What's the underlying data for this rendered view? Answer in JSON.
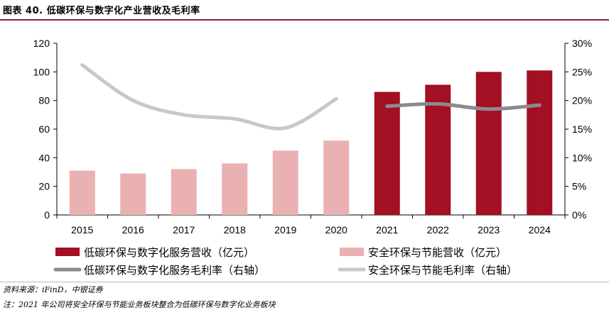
{
  "figure": {
    "title": "图表 40. 低碳环保与数字化产业营收及毛利率",
    "source": "资料来源：iFinD，中银证券",
    "note": "注：2021 年公司将安全环保与节能业务板块整合为低碳环保与数字化业务板块"
  },
  "colors": {
    "lowcarbon_revenue": "#a30f23",
    "safety_revenue": "#e9b1b2",
    "lowcarbon_margin": "#8a8a8f",
    "safety_margin": "#c8c8c8",
    "title_rule": "#8c1c2a"
  },
  "chart_data": {
    "type": "bar",
    "categories": [
      "2015",
      "2016",
      "2017",
      "2018",
      "2019",
      "2020",
      "2021",
      "2022",
      "2023",
      "2024"
    ],
    "series": [
      {
        "name": "低碳环保与数字化服务营收（亿元）",
        "kind": "bar",
        "axis": "left",
        "values": [
          null,
          null,
          null,
          null,
          null,
          null,
          86,
          91,
          100,
          101
        ]
      },
      {
        "name": "安全环保与节能营收（亿元）",
        "kind": "bar",
        "axis": "left",
        "values": [
          31,
          29,
          32,
          36,
          45,
          52,
          null,
          null,
          null,
          null
        ]
      },
      {
        "name": "低碳环保与数字化服务毛利率（右轴）",
        "kind": "line",
        "axis": "right",
        "values": [
          null,
          null,
          null,
          null,
          null,
          null,
          19.0,
          19.4,
          18.5,
          19.2
        ]
      },
      {
        "name": "安全环保与节能毛利率（右轴）",
        "kind": "line",
        "axis": "right",
        "values": [
          26.2,
          20.0,
          17.5,
          16.8,
          15.2,
          20.3,
          null,
          null,
          null,
          null
        ]
      }
    ],
    "y_left": {
      "min": 0,
      "max": 120,
      "ticks": [
        "0",
        "20",
        "40",
        "60",
        "80",
        "100",
        "120"
      ]
    },
    "y_right": {
      "min": 0,
      "max": 30,
      "ticks": [
        "0%",
        "5%",
        "10%",
        "15%",
        "20%",
        "25%",
        "30%"
      ]
    },
    "legend": {
      "position": "bottom",
      "items": [
        "低碳环保与数字化服务营收（亿元）",
        "安全环保与节能营收（亿元）",
        "低碳环保与数字化服务毛利率（右轴）",
        "安全环保与节能毛利率（右轴）"
      ]
    }
  }
}
